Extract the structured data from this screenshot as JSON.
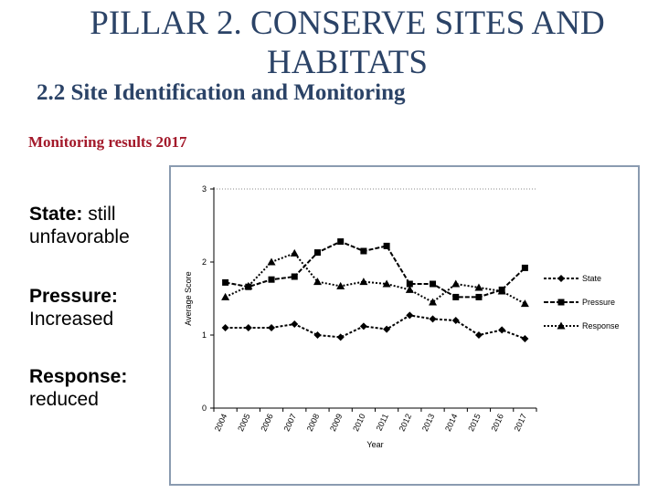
{
  "slide": {
    "title_line1": "PILLAR 2. CONSERVE SITES AND",
    "title_line2": "HABITATS",
    "subtitle": "2.2 Site Identification and Monitoring",
    "monitoring_label": "Monitoring results 2017",
    "state_key": "State:",
    "state_text": "still unfavorable",
    "pressure_key": "Pressure:",
    "pressure_text": "Increased",
    "response_key": "Response:",
    "response_text": "reduced"
  },
  "chart_data": {
    "type": "line",
    "xlabel": "Year",
    "ylabel": "Average Score",
    "ylim": [
      0,
      3
    ],
    "yticks": [
      0,
      1,
      2,
      3
    ],
    "grid": "dotted at y=3",
    "legend_position": "right",
    "categories": [
      "2004",
      "2005",
      "2006",
      "2007",
      "2008",
      "2009",
      "2010",
      "2011",
      "2012",
      "2013",
      "2014",
      "2015",
      "2016",
      "2017"
    ],
    "series": [
      {
        "name": "State",
        "marker": "diamond",
        "values": [
          1.1,
          1.1,
          1.1,
          1.15,
          1.0,
          0.97,
          1.12,
          1.08,
          1.27,
          1.22,
          1.2,
          1.0,
          1.07,
          0.95
        ]
      },
      {
        "name": "Pressure",
        "marker": "square",
        "values": [
          1.72,
          1.66,
          1.76,
          1.8,
          2.13,
          2.28,
          2.15,
          2.22,
          1.7,
          1.7,
          1.52,
          1.52,
          1.62,
          1.92
        ]
      },
      {
        "name": "Response",
        "marker": "triangle",
        "values": [
          1.52,
          1.67,
          2.0,
          2.12,
          1.73,
          1.67,
          1.73,
          1.7,
          1.62,
          1.45,
          1.7,
          1.65,
          1.6,
          1.43
        ]
      }
    ]
  }
}
